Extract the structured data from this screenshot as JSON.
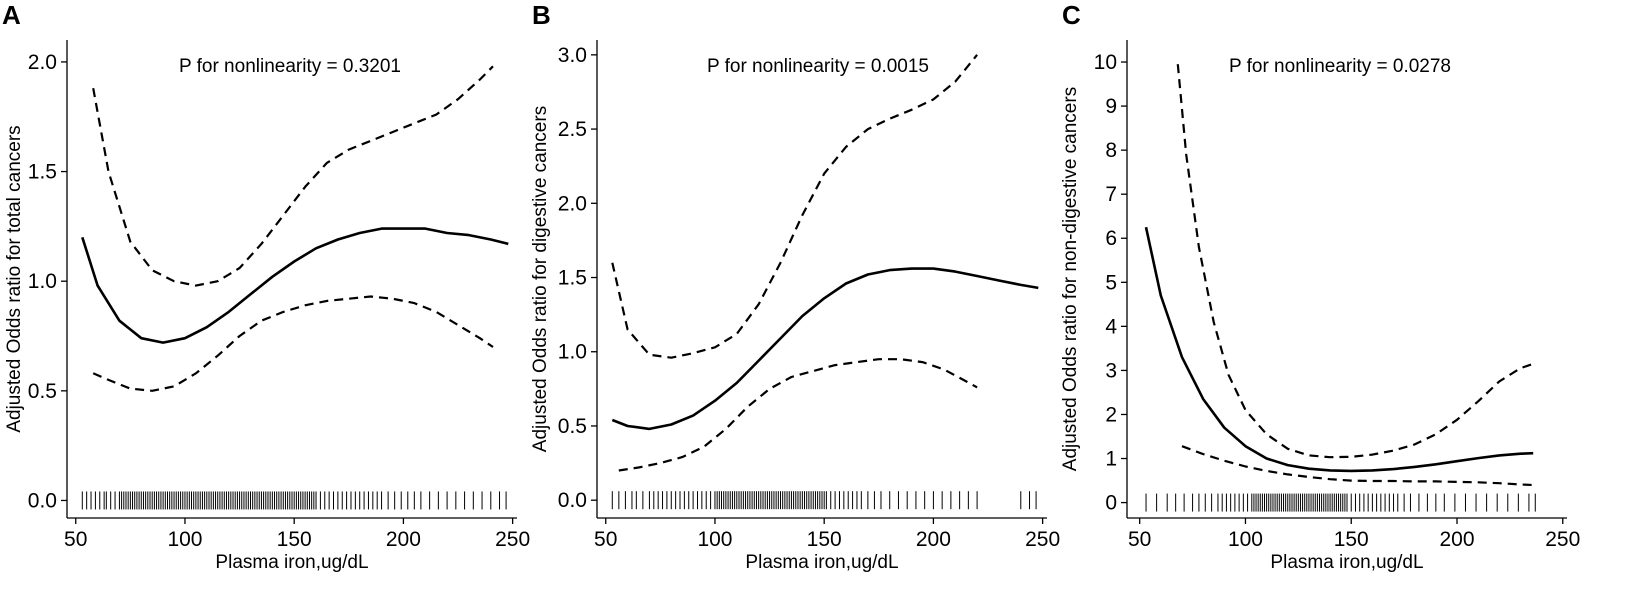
{
  "chart_data": [
    {
      "type": "line",
      "panel_label": "A",
      "annotation": "P for nonlinearity = 0.3201",
      "xlabel": "Plasma iron,ug/dL",
      "ylabel": "Adjusted Odds ratio for total cancers",
      "xlim": [
        46,
        252
      ],
      "ylim": [
        -0.08,
        2.1
      ],
      "xticks": [
        50,
        100,
        150,
        200,
        250
      ],
      "xtick_labels": [
        "50",
        "100",
        "150",
        "200",
        "250"
      ],
      "yticks": [
        0.0,
        0.5,
        1.0,
        1.5,
        2.0
      ],
      "ytick_labels": [
        "0.0",
        "0.5",
        "1.0",
        "1.5",
        "2.0"
      ],
      "series": [
        {
          "name": "odds ratio",
          "style": "solid",
          "x": [
            53,
            60,
            70,
            80,
            90,
            100,
            110,
            120,
            130,
            140,
            150,
            160,
            170,
            180,
            190,
            200,
            210,
            220,
            230,
            240,
            248
          ],
          "y": [
            1.2,
            0.98,
            0.82,
            0.74,
            0.72,
            0.74,
            0.79,
            0.86,
            0.94,
            1.02,
            1.09,
            1.15,
            1.19,
            1.22,
            1.24,
            1.24,
            1.24,
            1.22,
            1.21,
            1.19,
            1.17
          ]
        },
        {
          "name": "upper 95% CI",
          "style": "dashed",
          "x": [
            58,
            65,
            75,
            85,
            95,
            105,
            115,
            125,
            135,
            145,
            155,
            165,
            175,
            185,
            195,
            205,
            215,
            225,
            235,
            241
          ],
          "y": [
            1.88,
            1.5,
            1.18,
            1.05,
            1.0,
            0.98,
            1.0,
            1.06,
            1.17,
            1.3,
            1.43,
            1.54,
            1.6,
            1.64,
            1.68,
            1.72,
            1.76,
            1.83,
            1.92,
            1.98
          ]
        },
        {
          "name": "lower 95% CI",
          "style": "dashed",
          "x": [
            58,
            65,
            75,
            85,
            95,
            105,
            115,
            125,
            135,
            145,
            155,
            165,
            175,
            185,
            195,
            205,
            215,
            225,
            235,
            241
          ],
          "y": [
            0.58,
            0.55,
            0.51,
            0.5,
            0.52,
            0.58,
            0.66,
            0.75,
            0.82,
            0.86,
            0.89,
            0.91,
            0.92,
            0.93,
            0.92,
            0.9,
            0.86,
            0.8,
            0.74,
            0.7
          ]
        }
      ],
      "rug_x": [
        53,
        55,
        57,
        59,
        61,
        63,
        64,
        66,
        68,
        70,
        71,
        72,
        73,
        74,
        75,
        76,
        77,
        78,
        79,
        80,
        81,
        82,
        83,
        84,
        85,
        86,
        87,
        88,
        89,
        90,
        91,
        92,
        93,
        94,
        95,
        96,
        97,
        98,
        99,
        100,
        101,
        102,
        103,
        104,
        105,
        106,
        107,
        108,
        109,
        110,
        111,
        112,
        113,
        114,
        115,
        116,
        117,
        118,
        119,
        120,
        121,
        122,
        123,
        124,
        125,
        126,
        127,
        128,
        129,
        130,
        131,
        132,
        133,
        134,
        135,
        136,
        137,
        138,
        139,
        140,
        141,
        142,
        143,
        144,
        145,
        146,
        147,
        148,
        149,
        150,
        151,
        152,
        153,
        154,
        155,
        156,
        157,
        158,
        159,
        160,
        162,
        164,
        166,
        168,
        170,
        172,
        174,
        176,
        178,
        180,
        182,
        184,
        186,
        188,
        190,
        193,
        196,
        199,
        202,
        205,
        208,
        212,
        216,
        220,
        224,
        228,
        232,
        236,
        240,
        244,
        247
      ]
    },
    {
      "type": "line",
      "panel_label": "B",
      "annotation": "P for nonlinearity = 0.0015",
      "xlabel": "Plasma iron,ug/dL",
      "ylabel": "Adjusted Odds ratio for digestive cancers",
      "xlim": [
        46,
        252
      ],
      "ylim": [
        -0.12,
        3.1
      ],
      "xticks": [
        50,
        100,
        150,
        200,
        250
      ],
      "xtick_labels": [
        "50",
        "100",
        "150",
        "200",
        "250"
      ],
      "yticks": [
        0.0,
        0.5,
        1.0,
        1.5,
        2.0,
        2.5,
        3.0
      ],
      "ytick_labels": [
        "0.0",
        "0.5",
        "1.0",
        "1.5",
        "2.0",
        "2.5",
        "3.0"
      ],
      "series": [
        {
          "name": "odds ratio",
          "style": "solid",
          "x": [
            53,
            60,
            70,
            80,
            90,
            100,
            110,
            120,
            130,
            140,
            150,
            160,
            170,
            180,
            190,
            200,
            210,
            220,
            230,
            240,
            248
          ],
          "y": [
            0.54,
            0.5,
            0.48,
            0.51,
            0.57,
            0.67,
            0.79,
            0.94,
            1.09,
            1.24,
            1.36,
            1.46,
            1.52,
            1.55,
            1.56,
            1.56,
            1.54,
            1.51,
            1.48,
            1.45,
            1.43
          ]
        },
        {
          "name": "upper 95% CI",
          "style": "dashed",
          "x": [
            53,
            60,
            70,
            80,
            90,
            100,
            110,
            120,
            130,
            140,
            150,
            160,
            170,
            180,
            190,
            200,
            210,
            220
          ],
          "y": [
            1.6,
            1.15,
            0.98,
            0.96,
            0.99,
            1.03,
            1.12,
            1.32,
            1.6,
            1.92,
            2.2,
            2.38,
            2.5,
            2.57,
            2.63,
            2.7,
            2.82,
            3.0
          ]
        },
        {
          "name": "lower 95% CI",
          "style": "dashed",
          "x": [
            56,
            65,
            75,
            85,
            95,
            105,
            115,
            125,
            135,
            145,
            155,
            165,
            175,
            185,
            195,
            205,
            215,
            220
          ],
          "y": [
            0.2,
            0.22,
            0.25,
            0.29,
            0.36,
            0.48,
            0.63,
            0.75,
            0.83,
            0.87,
            0.91,
            0.93,
            0.95,
            0.95,
            0.93,
            0.88,
            0.8,
            0.76
          ]
        }
      ],
      "rug_x": [
        53,
        56,
        59,
        62,
        64,
        67,
        70,
        72,
        74,
        76,
        78,
        80,
        82,
        84,
        86,
        88,
        90,
        92,
        94,
        96,
        98,
        100,
        101,
        102,
        103,
        104,
        105,
        106,
        107,
        108,
        109,
        110,
        111,
        112,
        113,
        114,
        115,
        116,
        117,
        118,
        119,
        120,
        121,
        122,
        123,
        124,
        125,
        126,
        127,
        128,
        129,
        130,
        131,
        132,
        133,
        134,
        135,
        136,
        137,
        138,
        139,
        140,
        141,
        142,
        143,
        144,
        145,
        146,
        147,
        148,
        149,
        150,
        151,
        153,
        155,
        157,
        159,
        161,
        163,
        165,
        167,
        170,
        173,
        176,
        180,
        184,
        188,
        192,
        196,
        200,
        204,
        208,
        212,
        216,
        220,
        240,
        244,
        247
      ]
    },
    {
      "type": "line",
      "panel_label": "C",
      "annotation": "P for nonlinearity = 0.0278",
      "xlabel": "Plasma iron,ug/dL",
      "ylabel": "Adjusted Odds ratio for non-digestive cancers",
      "xlim": [
        44,
        252
      ],
      "ylim": [
        -0.35,
        10.5
      ],
      "xticks": [
        50,
        100,
        150,
        200,
        250
      ],
      "xtick_labels": [
        "50",
        "100",
        "150",
        "200",
        "250"
      ],
      "yticks": [
        0,
        1,
        2,
        3,
        4,
        5,
        6,
        7,
        8,
        9,
        10
      ],
      "ytick_labels": [
        "0",
        "1",
        "2",
        "3",
        "4",
        "5",
        "6",
        "7",
        "8",
        "9",
        "10"
      ],
      "series": [
        {
          "name": "odds ratio",
          "style": "solid",
          "x": [
            53,
            60,
            70,
            80,
            90,
            100,
            110,
            120,
            130,
            140,
            150,
            160,
            170,
            180,
            190,
            200,
            210,
            220,
            230,
            236
          ],
          "y": [
            6.25,
            4.7,
            3.3,
            2.35,
            1.7,
            1.28,
            1.0,
            0.85,
            0.77,
            0.73,
            0.72,
            0.73,
            0.76,
            0.81,
            0.87,
            0.94,
            1.01,
            1.07,
            1.11,
            1.12
          ]
        },
        {
          "name": "upper 95% CI",
          "style": "dashed",
          "x": [
            68,
            72,
            78,
            85,
            92,
            100,
            110,
            120,
            130,
            140,
            150,
            160,
            170,
            180,
            190,
            200,
            210,
            220,
            230,
            236
          ],
          "y": [
            9.95,
            7.9,
            5.8,
            4.1,
            2.9,
            2.1,
            1.55,
            1.22,
            1.07,
            1.03,
            1.04,
            1.09,
            1.18,
            1.32,
            1.55,
            1.88,
            2.3,
            2.75,
            3.05,
            3.15
          ]
        },
        {
          "name": "lower 95% CI",
          "style": "dashed",
          "x": [
            70,
            80,
            90,
            100,
            110,
            120,
            130,
            140,
            150,
            160,
            170,
            180,
            190,
            200,
            210,
            220,
            230,
            236
          ],
          "y": [
            1.28,
            1.1,
            0.95,
            0.82,
            0.72,
            0.64,
            0.58,
            0.53,
            0.5,
            0.49,
            0.49,
            0.48,
            0.48,
            0.47,
            0.46,
            0.44,
            0.41,
            0.4
          ]
        }
      ],
      "rug_x": [
        53,
        58,
        63,
        67,
        71,
        75,
        78,
        81,
        84,
        87,
        89,
        91,
        93,
        95,
        97,
        99,
        101,
        103,
        104,
        105,
        106,
        107,
        108,
        109,
        110,
        111,
        112,
        113,
        114,
        115,
        116,
        117,
        118,
        119,
        120,
        121,
        122,
        123,
        124,
        125,
        126,
        127,
        128,
        129,
        130,
        131,
        132,
        133,
        134,
        135,
        136,
        137,
        138,
        139,
        140,
        141,
        142,
        143,
        144,
        145,
        146,
        147,
        148,
        150,
        152,
        154,
        156,
        158,
        160,
        162,
        164,
        166,
        168,
        170,
        172,
        175,
        178,
        182,
        186,
        190,
        194,
        199,
        204,
        209,
        214,
        219,
        224,
        229,
        234,
        237
      ]
    }
  ]
}
